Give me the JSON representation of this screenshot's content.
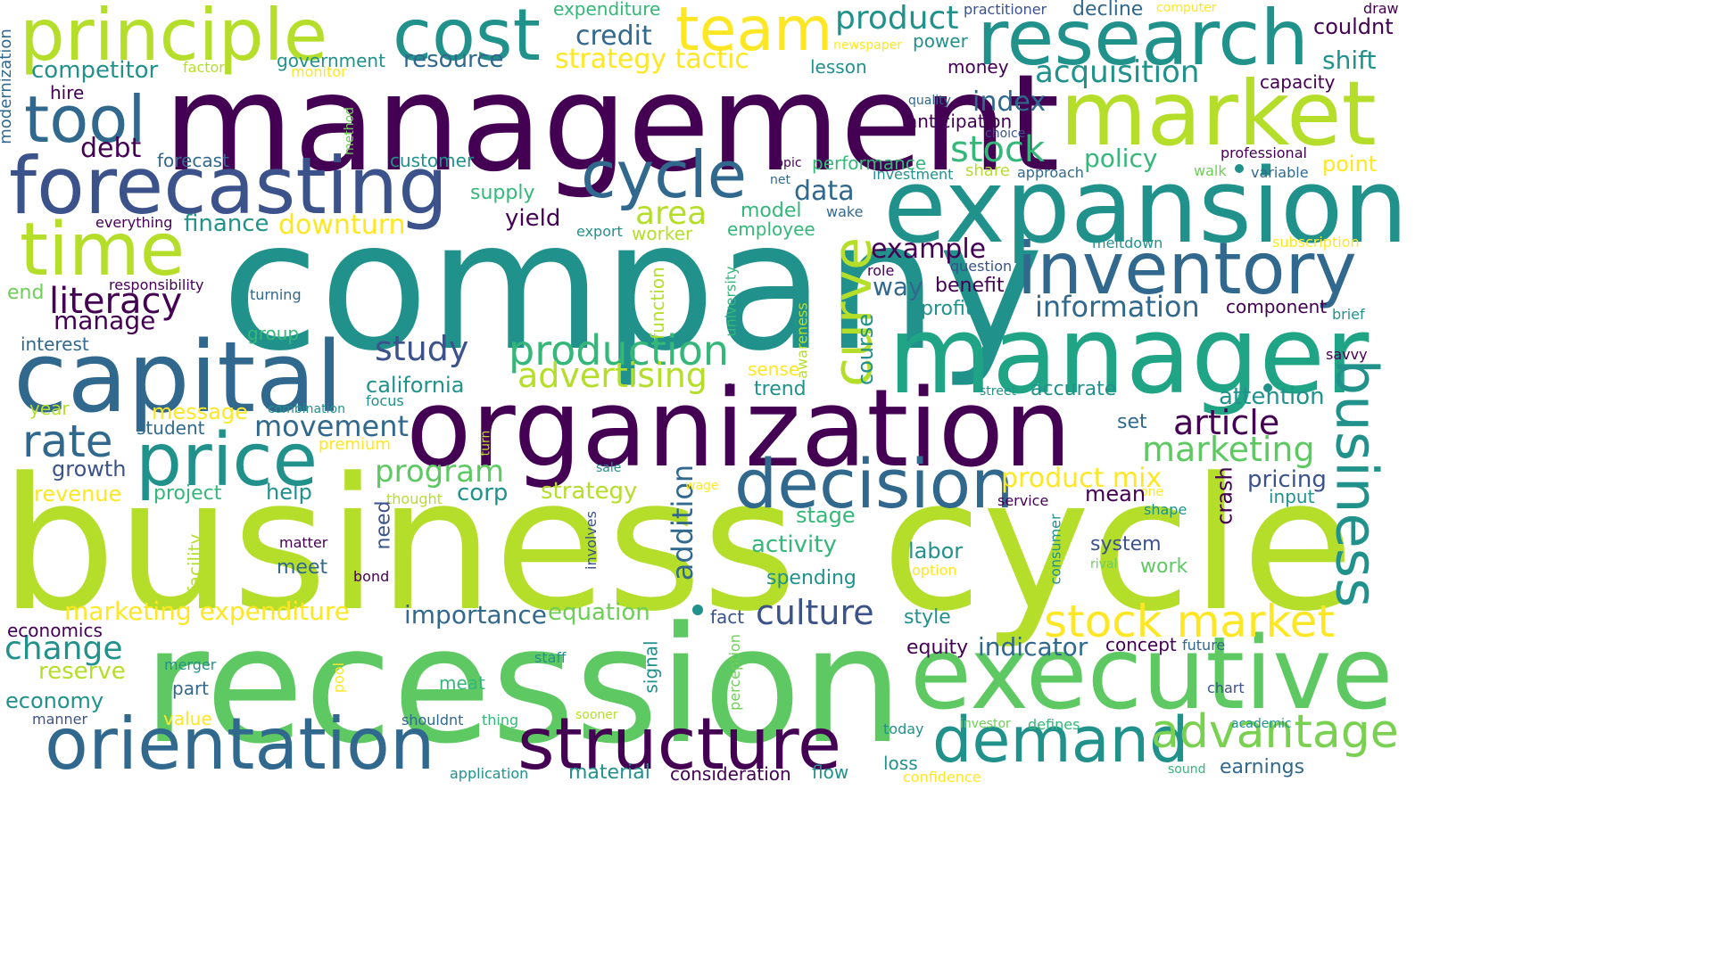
{
  "palette": {
    "purple": "#440154",
    "indigo": "#3b528b",
    "blue": "#31688e",
    "teal": "#21918c",
    "green": "#35b779",
    "lightgreen": "#6ece58",
    "lime": "#b5de2b",
    "yellow": "#fde725",
    "background": "#ffffff"
  },
  "words": [
    "management",
    "company",
    "business",
    "cycle",
    "recession",
    "organization",
    "expansion",
    "manager",
    "forecasting",
    "capital",
    "market",
    "research",
    "principle",
    "cost",
    "team",
    "executive",
    "inventory",
    "orientation",
    "structure",
    "decision",
    "price",
    "time",
    "curve",
    "demand",
    "tool",
    "stock market",
    "advantage",
    "business",
    "production",
    "culture",
    "cycle",
    "rate",
    "product",
    "acquisition",
    "stock",
    "literacy",
    "article",
    "marketing",
    "information",
    "study",
    "advertising",
    "area",
    "data",
    "program",
    "example",
    "change",
    "index",
    "credit",
    "strategy tactic",
    "movement",
    "addition",
    "downturn",
    "policy",
    "shift",
    "debt",
    "resource",
    "competitor",
    "expenditure",
    "decline",
    "couldnt",
    "money",
    "lesson",
    "power",
    "anticipation",
    "capacity",
    "point",
    "professional",
    "variable",
    "walk",
    "approach",
    "share",
    "investment",
    "performance",
    "topic",
    "net",
    "customer",
    "forecast",
    "government",
    "factor",
    "monitor",
    "method",
    "hire",
    "modernization",
    "supply",
    "yield",
    "model",
    "employee",
    "finance",
    "everything",
    "export",
    "worker",
    "wake",
    "meltdown",
    "subscription",
    "role",
    "question",
    "benefit",
    "profit",
    "way",
    "responsibility",
    "turning",
    "end",
    "manage",
    "interest",
    "group",
    "function",
    "university",
    "awareness",
    "course",
    "component",
    "brief",
    "savvy",
    "attention",
    "accurate",
    "street",
    "sense",
    "trend",
    "california",
    "focus",
    "combination",
    "message",
    "year",
    "student",
    "premium",
    "turn",
    "growth",
    "set",
    "crash",
    "pricing",
    "input",
    "one",
    "mean",
    "product mix",
    "corp",
    "strategy",
    "sale",
    "wage",
    "thought",
    "project",
    "revenue",
    "help",
    "need",
    "involves",
    "service",
    "stage",
    "shape",
    "activity",
    "system",
    "labor",
    "option",
    "rival",
    "work",
    "consumer",
    "spending",
    "facility",
    "matter",
    "meet",
    "bond",
    "marketing expenditure",
    "importance",
    "equation",
    "fact",
    "style",
    "economics",
    "equity",
    "indicator",
    "concept",
    "future",
    "signal",
    "perception",
    "staff",
    "merger",
    "pool",
    "reserve",
    "part",
    "economy",
    "meat",
    "chart",
    "manner",
    "value",
    "shouldnt",
    "thing",
    "sooner",
    "investor",
    "defines",
    "academic",
    "today",
    "loss",
    "sound",
    "earnings",
    "application",
    "material",
    "consideration",
    "flow",
    "confidence",
    "practitioner",
    "computer",
    "draw",
    "newspaper",
    "quality",
    "choice"
  ]
}
